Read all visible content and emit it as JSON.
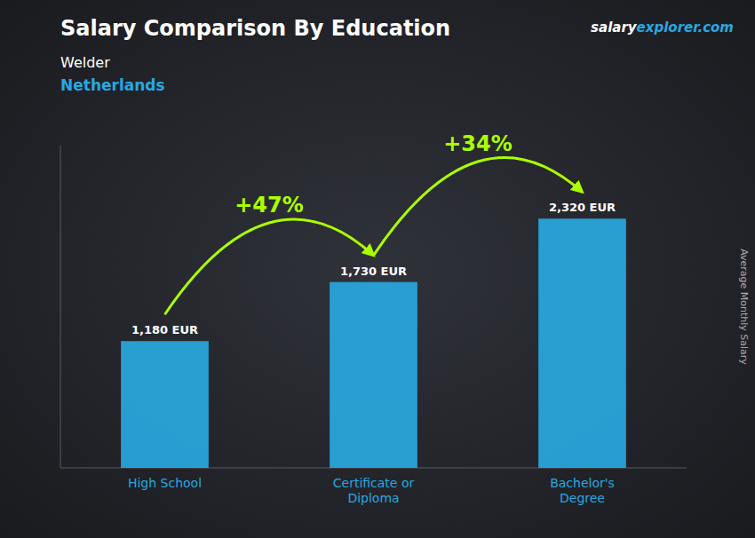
{
  "chart_data": {
    "type": "bar",
    "title": "Salary Comparison By Education",
    "subtitles": [
      {
        "text": "Welder",
        "color": "#ffffff"
      },
      {
        "text": "Netherlands",
        "color": "#29a8e0"
      }
    ],
    "brand": [
      {
        "text": "salary",
        "color": "#ffffff"
      },
      {
        "text": "explorer.com",
        "color": "#29a8e0"
      }
    ],
    "categories": [
      "High School",
      "Certificate or\nDiploma",
      "Bachelor's\nDegree"
    ],
    "values": [
      1180,
      1730,
      2320
    ],
    "value_labels": [
      "1,180 EUR",
      "1,730 EUR",
      "2,320 EUR"
    ],
    "data_labels": true,
    "color": "#29a8e0",
    "ylim": [
      0,
      3000
    ],
    "tick_labels": "x",
    "grid": false,
    "y_label": "Average Monthly Salary",
    "annotations": [
      {
        "text": "+47%",
        "color": "#aaff00"
      },
      {
        "text": "+34%",
        "color": "#aaff00"
      }
    ]
  }
}
